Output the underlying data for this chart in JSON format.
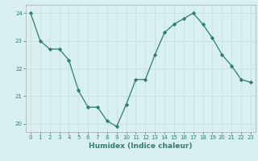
{
  "x": [
    0,
    1,
    2,
    3,
    4,
    5,
    6,
    7,
    8,
    9,
    10,
    11,
    12,
    13,
    14,
    15,
    16,
    17,
    18,
    19,
    20,
    21,
    22,
    23
  ],
  "y": [
    24.0,
    23.0,
    22.7,
    22.7,
    22.3,
    21.2,
    20.6,
    20.6,
    20.1,
    19.9,
    20.7,
    21.6,
    21.6,
    22.5,
    23.3,
    23.6,
    23.8,
    24.0,
    23.6,
    23.1,
    22.5,
    22.1,
    21.6,
    21.5
  ],
  "xlabel": "Humidex (Indice chaleur)",
  "ylim": [
    19.7,
    24.3
  ],
  "xlim": [
    -0.5,
    23.5
  ],
  "yticks": [
    20,
    21,
    22,
    23,
    24
  ],
  "xticks": [
    0,
    1,
    2,
    3,
    4,
    5,
    6,
    7,
    8,
    9,
    10,
    11,
    12,
    13,
    14,
    15,
    16,
    17,
    18,
    19,
    20,
    21,
    22,
    23
  ],
  "line_color": "#2e7d6e",
  "bg_color": "#d8f0f0",
  "grid_color": "#c8e0e0",
  "marker": "D",
  "markersize": 2.2,
  "tick_fontsize": 5.0,
  "xlabel_fontsize": 6.5
}
